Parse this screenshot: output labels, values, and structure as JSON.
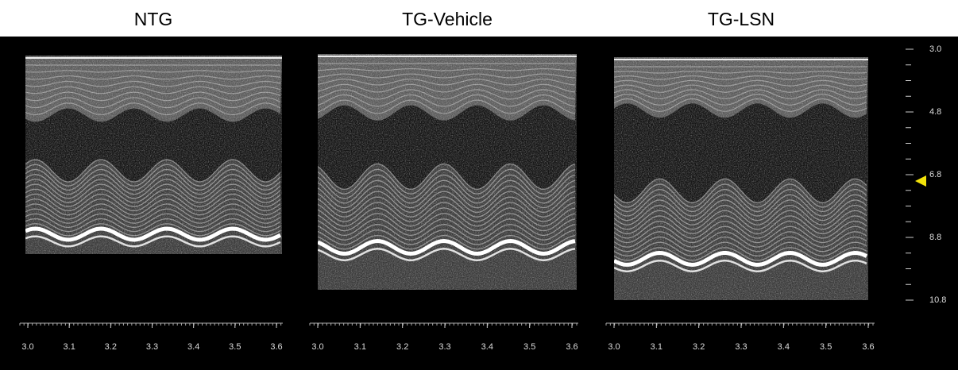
{
  "panels": [
    {
      "title": "NTG",
      "time_labels": [
        "3.0",
        "3.1",
        "3.2",
        "3.3",
        "3.4",
        "3.5",
        "3.6"
      ]
    },
    {
      "title": "TG-Vehicle",
      "time_labels": [
        "3.0",
        "3.1",
        "3.2",
        "3.3",
        "3.4",
        "3.5",
        "3.6"
      ]
    },
    {
      "title": "TG-LSN",
      "time_labels": [
        "3.0",
        "3.1",
        "3.2",
        "3.3",
        "3.4",
        "3.5",
        "3.6"
      ]
    }
  ],
  "depth_labels": [
    "3.0",
    "4.8",
    "6.8",
    "8.8",
    "10.8"
  ]
}
